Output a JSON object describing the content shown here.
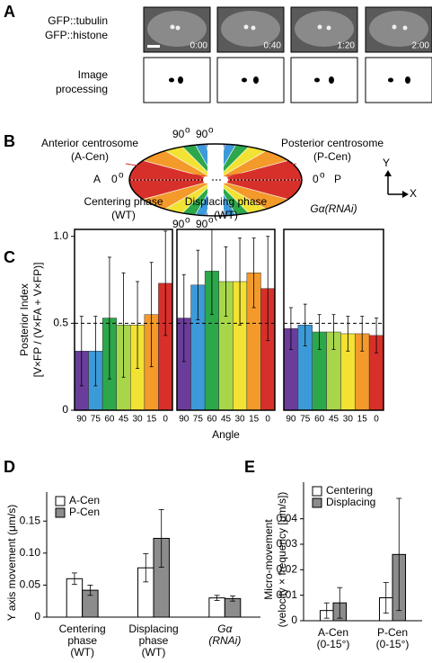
{
  "panel_labels": [
    "A",
    "B",
    "C",
    "D",
    "E"
  ],
  "panel_a": {
    "channel_labels": [
      "GFP::tubulin",
      "GFP::histone"
    ],
    "processing_label": [
      "Image",
      "processing"
    ],
    "timestamps": [
      "0:00",
      "0:40",
      "1:20",
      "2:00"
    ]
  },
  "panel_b": {
    "anterior": [
      "Anterior centrosome",
      "(A-Cen)"
    ],
    "posterior": [
      "Posterior centrosome",
      "(P-Cen)"
    ],
    "a": "A",
    "p": "P",
    "angle_0": "0",
    "angle_90": "90",
    "degree": "o",
    "axis_y": "Y",
    "axis_x": "X"
  },
  "chart_data": [
    {
      "type": "bar",
      "title": "Centering phase",
      "subtitle": "(WT)",
      "ylabel": "Posterior Index",
      "ylabel2": "[V×FP / (V×FA + V×FP)]",
      "categories": [
        "90",
        "75",
        "60",
        "45",
        "30",
        "15",
        "0"
      ],
      "colors": [
        "#6a3d9a",
        "#3d9ad8",
        "#2ca84a",
        "#a8d64a",
        "#f2e233",
        "#f39a2b",
        "#d7302a"
      ],
      "values": [
        0.34,
        0.34,
        0.53,
        0.49,
        0.49,
        0.55,
        0.73
      ],
      "errors": [
        0.2,
        0.2,
        0.35,
        0.3,
        0.25,
        0.3,
        0.3
      ],
      "hline": 0.5,
      "ylim": [
        0,
        1.04
      ],
      "yticks": [
        0,
        0.5,
        {
          "value": 1,
          "label": "1.0"
        }
      ]
    },
    {
      "type": "bar",
      "title": "Displacing phase",
      "subtitle": "(WT)",
      "xlabel": "Angle",
      "categories": [
        "90",
        "75",
        "60",
        "45",
        "30",
        "15",
        "0"
      ],
      "colors": [
        "#6a3d9a",
        "#3d9ad8",
        "#2ca84a",
        "#a8d64a",
        "#f2e233",
        "#f39a2b",
        "#d7302a"
      ],
      "values": [
        0.53,
        0.72,
        0.8,
        0.74,
        0.74,
        0.79,
        0.7
      ],
      "errors": [
        0.25,
        0.2,
        0.25,
        0.2,
        0.25,
        0.2,
        0.3
      ],
      "hline": 0.5,
      "ylim": [
        0,
        1.04
      ]
    },
    {
      "type": "bar",
      "title": "Gα(RNAi)",
      "categories": [
        "90",
        "75",
        "60",
        "45",
        "30",
        "15",
        "0"
      ],
      "colors": [
        "#6a3d9a",
        "#3d9ad8",
        "#2ca84a",
        "#a8d64a",
        "#f2e233",
        "#f39a2b",
        "#d7302a"
      ],
      "values": [
        0.47,
        0.49,
        0.45,
        0.45,
        0.44,
        0.44,
        0.43
      ],
      "errors": [
        0.12,
        0.12,
        0.1,
        0.1,
        0.1,
        0.1,
        0.1
      ],
      "hline": 0.5,
      "ylim": [
        0,
        1.04
      ]
    },
    {
      "type": "grouped_bar",
      "ylabel": "Y axis movement (μm/s)",
      "categories": [
        "Centering\nphase\n(WT)",
        "Displacing\nphase\n(WT)",
        "Gα\n(RNAi)"
      ],
      "series": [
        {
          "name": "A-Cen",
          "color": "#ffffff",
          "values": [
            0.06,
            0.077,
            0.03
          ],
          "errors": [
            0.009,
            0.022,
            0.004
          ]
        },
        {
          "name": "P-Cen",
          "color": "#8c8c8c",
          "values": [
            0.042,
            0.123,
            0.029
          ],
          "errors": [
            0.008,
            0.045,
            0.004
          ]
        }
      ],
      "ylim": [
        0,
        0.17
      ],
      "yticks": [
        0,
        0.05,
        {
          "value": 0.1,
          "label": "0.10"
        },
        0.15
      ]
    },
    {
      "type": "grouped_bar",
      "ylabel": "Micro-movement",
      "ylabel2": "(velocity × frequency [μm/s])",
      "categories": [
        "A-Cen\n(0-15°)",
        "P-Cen\n(0-15°)"
      ],
      "series": [
        {
          "name": "Centering",
          "color": "#ffffff",
          "values": [
            0.004,
            0.009
          ],
          "errors": [
            0.003,
            0.006
          ]
        },
        {
          "name": "Displacing",
          "color": "#8c8c8c",
          "values": [
            0.007,
            0.026
          ],
          "errors": [
            0.006,
            0.022
          ]
        }
      ],
      "ylim": [
        0,
        0.048
      ],
      "yticks": [
        0,
        0.01,
        0.02,
        0.03,
        0.04
      ]
    }
  ]
}
